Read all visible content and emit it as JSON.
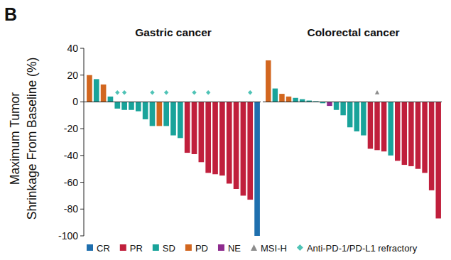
{
  "panel_label": "B",
  "chart_data": [
    {
      "type": "bar",
      "title": "Gastric cancer",
      "y_label": [
        "Maximum Tumor",
        "Shrinkage From Baseline (%)"
      ],
      "categories": [
        null,
        null,
        null,
        null,
        null,
        null,
        null,
        null,
        null,
        null,
        null,
        null,
        null,
        null,
        null,
        null,
        null,
        null,
        null,
        null,
        null,
        null,
        null,
        null,
        null
      ],
      "ylim": [
        -100,
        40
      ],
      "yticks": [
        -100,
        -80,
        -60,
        -40,
        -20,
        0,
        20,
        40
      ],
      "legend": "bottom",
      "tick_labels": "y",
      "series": [
        {
          "name": "CR",
          "color": "#1f6fae",
          "values": [
            null,
            null,
            null,
            null,
            null,
            null,
            null,
            null,
            null,
            null,
            null,
            null,
            null,
            null,
            null,
            null,
            null,
            null,
            null,
            null,
            null,
            null,
            null,
            null,
            -100
          ]
        },
        {
          "name": "PR",
          "color": "#c01f3c",
          "values": [
            null,
            null,
            null,
            null,
            null,
            null,
            null,
            null,
            null,
            null,
            null,
            null,
            null,
            null,
            -38,
            -39,
            -45,
            -53,
            -54,
            -55,
            -61,
            -65,
            -70,
            -73,
            null
          ]
        },
        {
          "name": "SD",
          "color": "#19a39a",
          "values": [
            null,
            17,
            null,
            4,
            -5,
            -6,
            -6,
            -7,
            -13,
            -18,
            null,
            -18,
            -25,
            -27,
            null,
            null,
            null,
            null,
            null,
            null,
            null,
            null,
            null,
            null,
            null
          ]
        },
        {
          "name": "PD",
          "color": "#d2661f",
          "values": [
            20,
            null,
            13,
            null,
            null,
            null,
            null,
            null,
            null,
            null,
            -18,
            null,
            null,
            null,
            null,
            null,
            null,
            null,
            null,
            null,
            null,
            null,
            null,
            null,
            null
          ]
        },
        {
          "name": "NE",
          "color": "#8e2b8e",
          "values": [
            null,
            null,
            null,
            null,
            null,
            null,
            null,
            null,
            null,
            null,
            null,
            null,
            null,
            null,
            null,
            null,
            null,
            null,
            null,
            null,
            null,
            null,
            null,
            null,
            null
          ]
        },
        {
          "name": "MSI-H",
          "type": "scatter",
          "marker": "triangle",
          "color": "#8c8c8c",
          "values": [
            null,
            null,
            null,
            null,
            null,
            null,
            null,
            null,
            null,
            null,
            null,
            null,
            null,
            null,
            null,
            null,
            null,
            null,
            null,
            null,
            null,
            null,
            null,
            null,
            null
          ]
        },
        {
          "name": "Anti-PD-1/PD-L1 refractory",
          "type": "scatter",
          "marker": "diamond",
          "color": "#4fc3b6",
          "values": [
            null,
            null,
            null,
            null,
            7,
            7,
            null,
            null,
            null,
            7,
            null,
            7,
            null,
            null,
            null,
            7,
            null,
            7,
            null,
            null,
            null,
            null,
            null,
            7,
            null
          ]
        }
      ]
    },
    {
      "type": "bar",
      "title": "Colorectal cancer",
      "categories": [
        null,
        null,
        null,
        null,
        null,
        null,
        null,
        null,
        null,
        null,
        null,
        null,
        null,
        null,
        null,
        null,
        null,
        null,
        null,
        null,
        null,
        null,
        null,
        null,
        null,
        null
      ],
      "ylim": [
        -100,
        40
      ],
      "yticks": [
        -100,
        -80,
        -60,
        -40,
        -20,
        0,
        20,
        40
      ],
      "tick_labels": false,
      "series": [
        {
          "name": "CR",
          "color": "#1f6fae",
          "values": [
            null,
            null,
            null,
            null,
            null,
            null,
            null,
            null,
            null,
            null,
            null,
            null,
            null,
            null,
            null,
            null,
            null,
            null,
            null,
            null,
            null,
            null,
            null,
            null,
            null,
            null
          ]
        },
        {
          "name": "PR",
          "color": "#c01f3c",
          "values": [
            null,
            null,
            null,
            null,
            null,
            null,
            null,
            null,
            null,
            null,
            null,
            null,
            null,
            null,
            null,
            -35,
            -36,
            -37,
            null,
            -44,
            -47,
            -48,
            -50,
            -53,
            -66,
            -87
          ]
        },
        {
          "name": "SD",
          "color": "#19a39a",
          "values": [
            null,
            10,
            null,
            null,
            3,
            2,
            1,
            0.5,
            -1,
            null,
            -6,
            -10,
            -19,
            -22,
            -25,
            null,
            null,
            null,
            -40,
            null,
            null,
            null,
            null,
            null,
            null,
            null
          ]
        },
        {
          "name": "PD",
          "color": "#d2661f",
          "values": [
            31,
            null,
            6,
            4,
            null,
            null,
            null,
            null,
            null,
            null,
            null,
            null,
            null,
            null,
            null,
            null,
            null,
            null,
            null,
            null,
            null,
            null,
            null,
            null,
            null,
            null
          ]
        },
        {
          "name": "NE",
          "color": "#8e2b8e",
          "values": [
            null,
            null,
            null,
            null,
            null,
            null,
            null,
            null,
            null,
            -3,
            null,
            null,
            null,
            null,
            null,
            null,
            null,
            null,
            null,
            null,
            null,
            null,
            null,
            null,
            null,
            null
          ]
        },
        {
          "name": "MSI-H",
          "type": "scatter",
          "marker": "triangle",
          "color": "#8c8c8c",
          "values": [
            null,
            null,
            null,
            null,
            null,
            null,
            null,
            null,
            null,
            null,
            null,
            null,
            null,
            null,
            null,
            null,
            7,
            null,
            null,
            null,
            null,
            null,
            null,
            null,
            null,
            null
          ]
        },
        {
          "name": "Anti-PD-1/PD-L1 refractory",
          "type": "scatter",
          "marker": "diamond",
          "color": "#4fc3b6",
          "values": [
            null,
            null,
            null,
            null,
            null,
            null,
            null,
            null,
            null,
            null,
            null,
            null,
            null,
            null,
            null,
            null,
            null,
            null,
            null,
            null,
            null,
            null,
            null,
            null,
            null,
            null
          ]
        }
      ]
    }
  ]
}
